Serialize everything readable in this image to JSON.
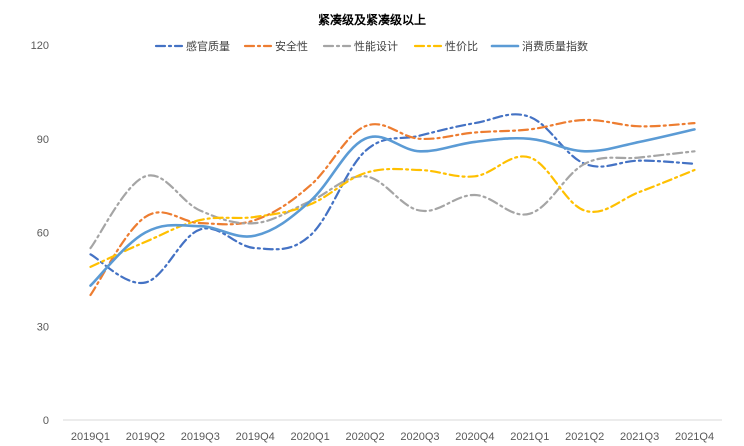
{
  "chart_data": {
    "type": "line",
    "title": "紧凑级及紧凑级以上",
    "xlabel": "",
    "ylabel": "",
    "ylim": [
      0,
      120
    ],
    "yticks": [
      0,
      30,
      60,
      90,
      120
    ],
    "grid": false,
    "legend_position": "top",
    "categories": [
      "2019Q1",
      "2019Q2",
      "2019Q3",
      "2019Q4",
      "2020Q1",
      "2020Q2",
      "2020Q3",
      "2020Q4",
      "2021Q1",
      "2021Q2",
      "2021Q3",
      "2021Q4"
    ],
    "series": [
      {
        "name": "感官质量",
        "color": "#4472C4",
        "dash": "dashdot",
        "values": [
          53,
          44,
          61,
          55,
          59,
          86,
          91,
          95,
          97,
          82,
          83,
          82
        ]
      },
      {
        "name": "安全性",
        "color": "#ED7D31",
        "dash": "dashdot",
        "values": [
          40,
          65,
          63,
          64,
          75,
          94,
          90,
          92,
          93,
          96,
          94,
          95
        ]
      },
      {
        "name": "性能设计",
        "color": "#A5A5A5",
        "dash": "dashdot",
        "values": [
          55,
          78,
          67,
          63,
          70,
          78,
          67,
          72,
          66,
          82,
          84,
          86
        ]
      },
      {
        "name": "性价比",
        "color": "#FFC000",
        "dash": "dashdot",
        "values": [
          49,
          57,
          64,
          65,
          69,
          79,
          80,
          78,
          84,
          67,
          73,
          80
        ]
      },
      {
        "name": "消费质量指数",
        "color": "#5B9BD5",
        "dash": "solid",
        "values": [
          43,
          60,
          62,
          59,
          70,
          90,
          86,
          89,
          90,
          86,
          89,
          93
        ]
      }
    ]
  }
}
